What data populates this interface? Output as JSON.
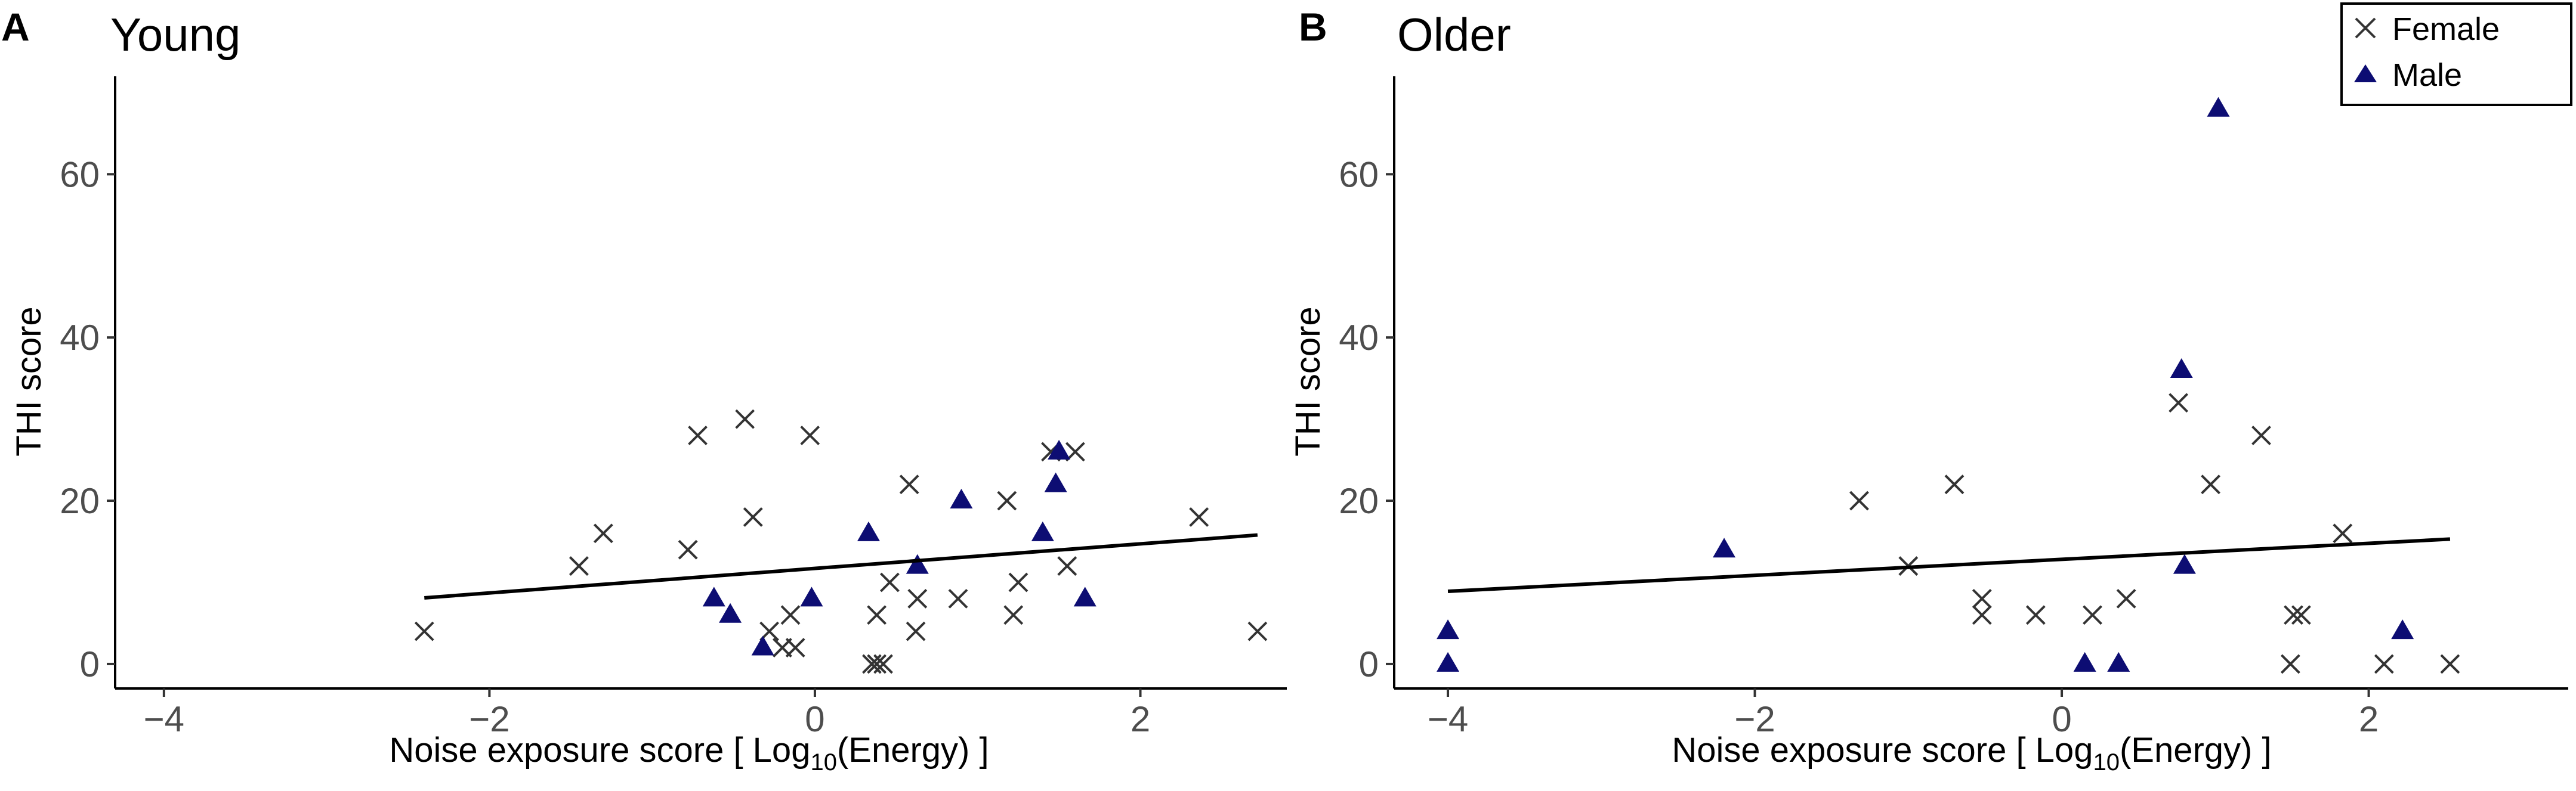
{
  "figure": {
    "caption": ""
  },
  "legend": {
    "entries": [
      {
        "label": "Female",
        "marker": "cross-icon"
      },
      {
        "label": "Male",
        "marker": "triangle-icon"
      }
    ],
    "placement": "top-right"
  },
  "colors": {
    "female": "#333333",
    "male": "#0d0d73",
    "fit_line": "#000000",
    "axis": "#000000",
    "tick_text": "#4d4d4d"
  },
  "chart_data": [
    {
      "type": "scatter",
      "panel_letter": "A",
      "title": "Young",
      "xlabel_main": "Noise exposure score [ Log",
      "xlabel_sub": "10",
      "xlabel_tail": "(Energy) ]",
      "ylabel": "THI score",
      "xlim": [
        -4.3,
        2.9
      ],
      "ylim": [
        -3,
        72
      ],
      "xticks": [
        -4,
        -2,
        0,
        2
      ],
      "xtick_labels": [
        "−4",
        "−2",
        "0",
        "2"
      ],
      "yticks": [
        0,
        20,
        40,
        60
      ],
      "ytick_labels": [
        "0",
        "20",
        "40",
        "60"
      ],
      "grid": false,
      "series": [
        {
          "name": "Female",
          "marker": "cross",
          "x": [
            -2.4,
            -1.45,
            -1.3,
            -0.78,
            -0.72,
            -0.43,
            -0.38,
            -0.28,
            -0.2,
            -0.15,
            -0.12,
            -0.03,
            0.35,
            0.38,
            0.38,
            0.42,
            0.46,
            0.58,
            0.62,
            0.63,
            0.88,
            1.18,
            1.22,
            1.25,
            1.45,
            1.55,
            1.6,
            2.36,
            2.72
          ],
          "y": [
            4,
            12,
            16,
            14,
            28,
            30,
            18,
            4,
            2,
            6,
            2,
            28,
            0,
            0,
            6,
            0,
            10,
            22,
            4,
            8,
            8,
            20,
            6,
            10,
            26,
            12,
            26,
            18,
            4
          ]
        },
        {
          "name": "Male",
          "marker": "triangle",
          "x": [
            -0.62,
            -0.52,
            -0.32,
            -0.02,
            0.33,
            0.63,
            0.9,
            1.4,
            1.48,
            1.5,
            1.66
          ],
          "y": [
            8,
            6,
            2,
            8,
            16,
            12,
            20,
            16,
            22,
            26,
            8
          ]
        }
      ],
      "fit": {
        "x": [
          -2.4,
          2.72
        ],
        "y": [
          8.1,
          15.8
        ]
      }
    },
    {
      "type": "scatter",
      "panel_letter": "B",
      "title": "Older",
      "xlabel_main": "Noise exposure score [ Log",
      "xlabel_sub": "10",
      "xlabel_tail": "(Energy) ]",
      "ylabel": "THI score",
      "xlim": [
        -4.35,
        3.3
      ],
      "ylim": [
        -3,
        72
      ],
      "xticks": [
        -4,
        -2,
        0,
        2
      ],
      "xtick_labels": [
        "−4",
        "−2",
        "0",
        "2"
      ],
      "yticks": [
        0,
        20,
        40,
        60
      ],
      "ytick_labels": [
        "0",
        "20",
        "40",
        "60"
      ],
      "grid": false,
      "series": [
        {
          "name": "Female",
          "marker": "cross",
          "x": [
            -1.32,
            -1.0,
            -0.7,
            -0.52,
            -0.52,
            -0.17,
            0.2,
            0.42,
            0.76,
            0.97,
            1.3,
            1.49,
            1.51,
            1.56,
            1.83,
            2.1,
            2.53
          ],
          "y": [
            20,
            12,
            22,
            8,
            6,
            6,
            6,
            8,
            32,
            22,
            28,
            0,
            6,
            6,
            16,
            0,
            0
          ]
        },
        {
          "name": "Male",
          "marker": "triangle",
          "x": [
            -4.0,
            -4.0,
            -2.2,
            0.15,
            0.37,
            0.78,
            0.8,
            1.02,
            2.22
          ],
          "y": [
            4,
            0,
            14,
            0,
            0,
            36,
            12,
            68,
            4
          ]
        }
      ],
      "fit": {
        "x": [
          -4.0,
          2.53
        ],
        "y": [
          8.9,
          15.3
        ]
      }
    }
  ]
}
